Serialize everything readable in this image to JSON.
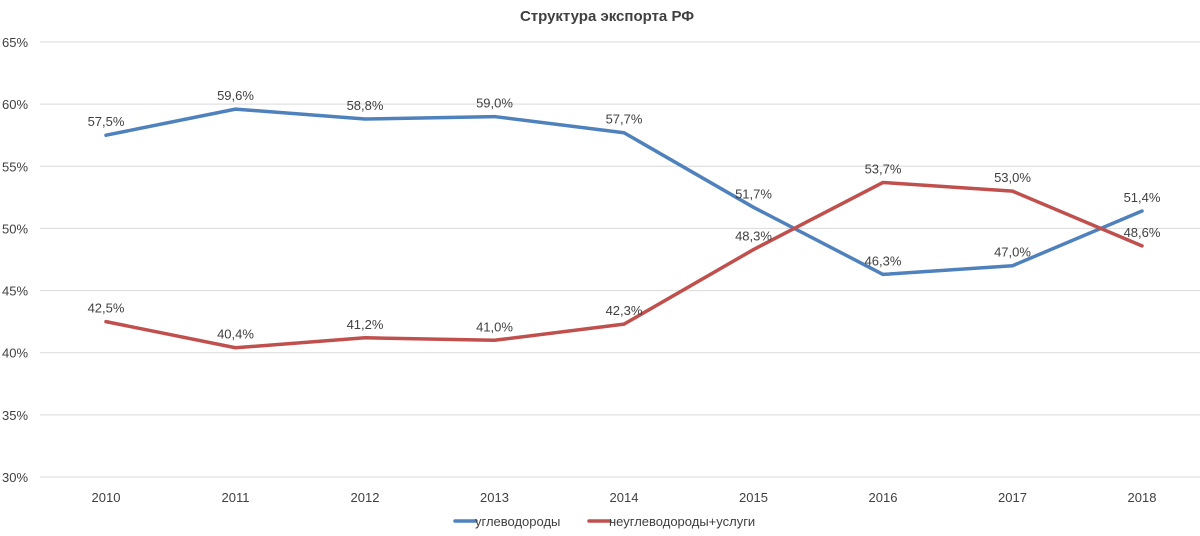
{
  "chart_data": {
    "type": "line",
    "title": "Структура экспорта РФ",
    "categories": [
      "2010",
      "2011",
      "2012",
      "2013",
      "2014",
      "2015",
      "2016",
      "2017",
      "2018"
    ],
    "ylim": [
      30,
      65
    ],
    "yticks": [
      30,
      35,
      40,
      45,
      50,
      55,
      60,
      65
    ],
    "ytick_labels": [
      "30%",
      "35%",
      "40%",
      "45%",
      "50%",
      "55%",
      "60%",
      "65%"
    ],
    "grid": true,
    "legend_position": "bottom",
    "series": [
      {
        "name": "углеводороды",
        "color": "#4f81bd",
        "values": [
          57.5,
          59.6,
          58.8,
          59.0,
          57.7,
          51.7,
          46.3,
          47.0,
          51.4
        ],
        "labels": [
          "57,5%",
          "59,6%",
          "58,8%",
          "59,0%",
          "57,7%",
          "51,7%",
          "46,3%",
          "47,0%",
          "51,4%"
        ]
      },
      {
        "name": "неуглеводороды+услуги",
        "color": "#c0504d",
        "values": [
          42.5,
          40.4,
          41.2,
          41.0,
          42.3,
          48.3,
          53.7,
          53.0,
          48.6
        ],
        "labels": [
          "42,5%",
          "40,4%",
          "41,2%",
          "41,0%",
          "42,3%",
          "48,3%",
          "53,7%",
          "53,0%",
          "48,6%"
        ]
      }
    ]
  }
}
